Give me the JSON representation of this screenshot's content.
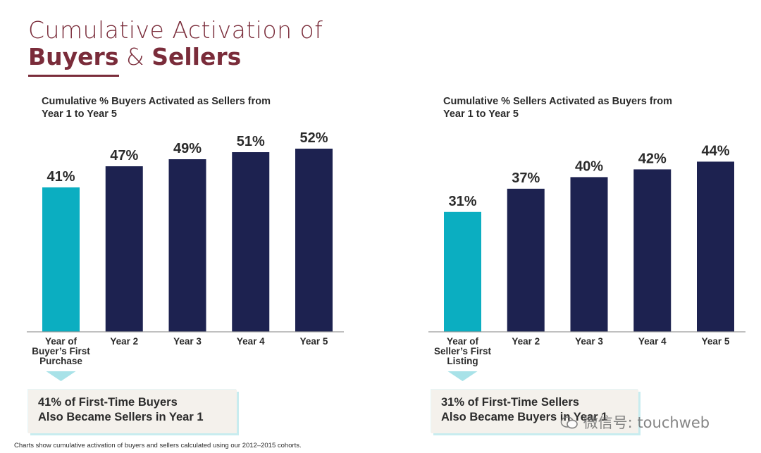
{
  "title": {
    "line1": "Cumulative Activation of",
    "line2_part1": "Buyers",
    "line2_amp": "&",
    "line2_part2": "Sellers"
  },
  "colors": {
    "title": "#7a2c3a",
    "highlight_bar": "#0baec1",
    "bar": "#1d2250",
    "callout_bg": "#f4f1ec",
    "callout_shadow": "#c8ecef"
  },
  "chart_data": [
    {
      "type": "bar",
      "title": [
        "Cumulative % Buyers Activated as Sellers from",
        "Year 1 to Year 5"
      ],
      "categories": [
        [
          "Year of",
          "Buyer’s First",
          "Purchase"
        ],
        [
          "Year 2"
        ],
        [
          "Year 3"
        ],
        [
          "Year 4"
        ],
        [
          "Year 5"
        ]
      ],
      "values": [
        41,
        47,
        49,
        51,
        52
      ],
      "value_labels": [
        "41%",
        "47%",
        "49%",
        "51%",
        "52%"
      ],
      "highlight_index": 0,
      "ylim": [
        0,
        100
      ],
      "grid": false,
      "callout": [
        "41% of First-Time Buyers",
        "Also Became Sellers in Year 1"
      ]
    },
    {
      "type": "bar",
      "title": [
        "Cumulative % Sellers Activated as Buyers from",
        "Year 1 to Year 5"
      ],
      "categories": [
        [
          "Year of",
          "Seller’s First",
          "Listing"
        ],
        [
          "Year 2"
        ],
        [
          "Year 3"
        ],
        [
          "Year 4"
        ],
        [
          "Year 5"
        ]
      ],
      "values": [
        31,
        37,
        40,
        42,
        44
      ],
      "value_labels": [
        "31%",
        "37%",
        "40%",
        "42%",
        "44%"
      ],
      "highlight_index": 0,
      "ylim": [
        0,
        100
      ],
      "grid": false,
      "callout": [
        "31% of First-Time Sellers",
        "Also Became Buyers in Year 1"
      ]
    }
  ],
  "footnote": "Charts show cumulative activation of buyers and sellers calculated using our 2012–2015 cohorts.",
  "watermark": "微信号: touchweb"
}
